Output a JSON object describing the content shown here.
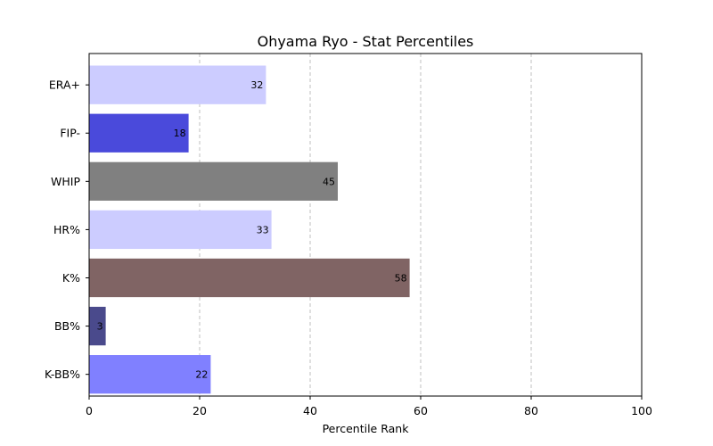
{
  "chart_data": {
    "type": "bar",
    "orientation": "horizontal",
    "title": "Ohyama Ryo - Stat Percentiles",
    "xlabel": "Percentile Rank",
    "ylabel": "",
    "xlim": [
      0,
      100
    ],
    "xticks": [
      0,
      20,
      40,
      60,
      80,
      100
    ],
    "grid": "x-dashed",
    "categories": [
      "ERA+",
      "FIP-",
      "WHIP",
      "HR%",
      "K%",
      "BB%",
      "K-BB%"
    ],
    "values": [
      32,
      18,
      45,
      33,
      58,
      3,
      22
    ],
    "colors": [
      "#ccccff",
      "#4a4adb",
      "#808080",
      "#ccccff",
      "#806464",
      "#4a4a8c",
      "#8080ff"
    ]
  }
}
